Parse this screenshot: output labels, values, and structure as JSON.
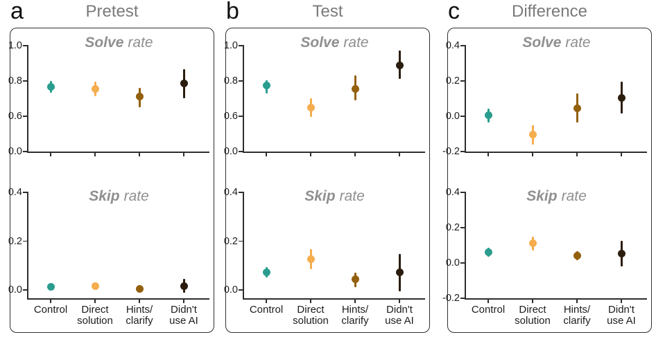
{
  "chart_data": {
    "type": "scatter",
    "style": "point-estimates-with-error-bars",
    "background_color": "#ffffff",
    "axis_color": "#2d2d2d",
    "panel_border_color": "#2f2f2f",
    "panel_title_color": "#7a7a7a",
    "subplot_title_color": "#8f8f8f",
    "tick_label_color": "#1c1c1c",
    "categories": [
      "Control",
      "Direct solution",
      "Hints/clarify",
      "Didn't use AI"
    ],
    "category_label_lines": [
      [
        "Control"
      ],
      [
        "Direct",
        "solution"
      ],
      [
        "Hints/",
        "clarify"
      ],
      [
        "Didn't",
        "use AI"
      ]
    ],
    "category_colors": [
      "#2a9d8f",
      "#f5ad4e",
      "#93600d",
      "#2b1d0e"
    ],
    "layout_hints": {
      "grid": false,
      "error_bar_caps": false,
      "legend": "none",
      "x_labels_on_bottom_subplot_only": true
    },
    "panels": [
      {
        "letter": "a",
        "title": "Pretest",
        "subplots": [
          {
            "title_bold": "Solve",
            "title_rest": "rate",
            "broken_axis": true,
            "ylim": [
              0.0,
              1.0
            ],
            "ticks": [
              {
                "label": "1.0",
                "value": 1.0
              },
              {
                "label": "0.8",
                "value": 0.8
              },
              {
                "label": "0.6",
                "value": 0.6
              },
              {
                "label": "0.0",
                "value": 0.0
              }
            ],
            "points": [
              {
                "category": "Control",
                "value": 0.765,
                "lo": 0.735,
                "hi": 0.8
              },
              {
                "category": "Direct solution",
                "value": 0.755,
                "lo": 0.715,
                "hi": 0.795
              },
              {
                "category": "Hints/clarify",
                "value": 0.71,
                "lo": 0.65,
                "hi": 0.762
              },
              {
                "category": "Didn't use AI",
                "value": 0.785,
                "lo": 0.7,
                "hi": 0.868
              }
            ]
          },
          {
            "title_bold": "Skip",
            "title_rest": "rate",
            "ylim": [
              0.0,
              0.4
            ],
            "axis_gap_below_last_tick": 12,
            "ticks": [
              {
                "label": "0.4",
                "value": 0.4
              },
              {
                "label": "0.2",
                "value": 0.2
              },
              {
                "label": "0.0",
                "value": 0.0
              }
            ],
            "points": [
              {
                "category": "Control",
                "value": 0.012,
                "lo": 0.005,
                "hi": 0.019
              },
              {
                "category": "Direct solution",
                "value": 0.016,
                "lo": 0.008,
                "hi": 0.026
              },
              {
                "category": "Hints/clarify",
                "value": 0.005,
                "lo": 0.0,
                "hi": 0.011
              },
              {
                "category": "Didn't use AI",
                "value": 0.016,
                "lo": -0.01,
                "hi": 0.046
              }
            ]
          }
        ]
      },
      {
        "letter": "b",
        "title": "Test",
        "subplots": [
          {
            "title_bold": "Solve",
            "title_rest": "rate",
            "broken_axis": true,
            "ylim": [
              0.0,
              1.0
            ],
            "ticks": [
              {
                "label": "1.0",
                "value": 1.0
              },
              {
                "label": "0.8",
                "value": 0.8
              },
              {
                "label": "0.6",
                "value": 0.6
              },
              {
                "label": "0.0",
                "value": 0.0
              }
            ],
            "points": [
              {
                "category": "Control",
                "value": 0.775,
                "lo": 0.73,
                "hi": 0.802
              },
              {
                "category": "Direct solution",
                "value": 0.65,
                "lo": 0.59,
                "hi": 0.702
              },
              {
                "category": "Hints/clarify",
                "value": 0.755,
                "lo": 0.69,
                "hi": 0.83
              },
              {
                "category": "Didn't use AI",
                "value": 0.89,
                "lo": 0.81,
                "hi": 0.972
              }
            ]
          },
          {
            "title_bold": "Skip",
            "title_rest": "rate",
            "ylim": [
              0.0,
              0.4
            ],
            "axis_gap_below_last_tick": 12,
            "ticks": [
              {
                "label": "0.4",
                "value": 0.4
              },
              {
                "label": "0.2",
                "value": 0.2
              },
              {
                "label": "0.0",
                "value": 0.0
              }
            ],
            "points": [
              {
                "category": "Control",
                "value": 0.073,
                "lo": 0.051,
                "hi": 0.095
              },
              {
                "category": "Direct solution",
                "value": 0.127,
                "lo": 0.086,
                "hi": 0.168
              },
              {
                "category": "Hints/clarify",
                "value": 0.043,
                "lo": 0.012,
                "hi": 0.072
              },
              {
                "category": "Didn't use AI",
                "value": 0.072,
                "lo": -0.005,
                "hi": 0.147
              }
            ]
          }
        ]
      },
      {
        "letter": "c",
        "title": "Difference",
        "subplots": [
          {
            "title_bold": "Solve",
            "title_rest": "rate",
            "ylim": [
              -0.2,
              0.4
            ],
            "ticks": [
              {
                "label": "0.4",
                "value": 0.4
              },
              {
                "label": "0.2",
                "value": 0.2
              },
              {
                "label": "0.0",
                "value": 0.0
              },
              {
                "label": "-0.2",
                "value": -0.2
              }
            ],
            "points": [
              {
                "category": "Control",
                "value": 0.005,
                "lo": -0.035,
                "hi": 0.042
              },
              {
                "category": "Direct solution",
                "value": -0.105,
                "lo": -0.16,
                "hi": -0.05
              },
              {
                "category": "Hints/clarify",
                "value": 0.045,
                "lo": -0.035,
                "hi": 0.128
              },
              {
                "category": "Didn't use AI",
                "value": 0.105,
                "lo": 0.015,
                "hi": 0.198
              }
            ]
          },
          {
            "title_bold": "Skip",
            "title_rest": "rate",
            "ylim": [
              -0.2,
              0.4
            ],
            "ticks": [
              {
                "label": "0.4",
                "value": 0.4
              },
              {
                "label": "0.2",
                "value": 0.2
              },
              {
                "label": "0.0",
                "value": 0.0
              },
              {
                "label": "-0.2",
                "value": -0.2
              }
            ],
            "points": [
              {
                "category": "Control",
                "value": 0.06,
                "lo": 0.035,
                "hi": 0.085
              },
              {
                "category": "Direct solution",
                "value": 0.11,
                "lo": 0.072,
                "hi": 0.15
              },
              {
                "category": "Hints/clarify",
                "value": 0.04,
                "lo": 0.015,
                "hi": 0.065
              },
              {
                "category": "Didn't use AI",
                "value": 0.052,
                "lo": -0.02,
                "hi": 0.125
              }
            ]
          }
        ]
      }
    ]
  }
}
